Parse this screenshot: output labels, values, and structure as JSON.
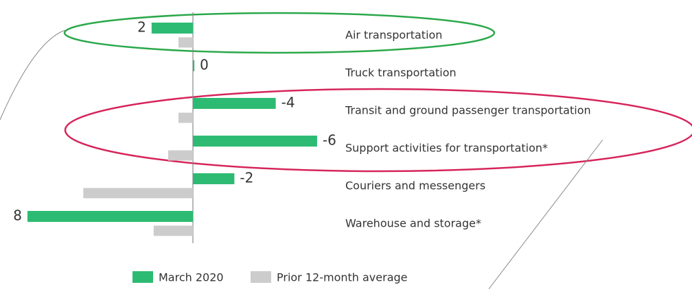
{
  "chart_data": {
    "type": "barh",
    "categories": [
      "Air transportation",
      "Truck transportation",
      "Transit and ground passenger transportation",
      "Support activities for transportation*",
      "Couriers and messengers",
      "Warehouse and storage*"
    ],
    "series": [
      {
        "name": "March 2020",
        "color": "#2dbb73",
        "values": [
          2,
          0,
          -4,
          -6,
          -2,
          8
        ]
      },
      {
        "name": "Prior 12-month average",
        "color": "#cccccc",
        "values": [
          0.7,
          0,
          0.7,
          1.2,
          5.3,
          1.9
        ]
      }
    ],
    "xlim": [
      8,
      -6.5
    ],
    "label_series": 0
  }
}
